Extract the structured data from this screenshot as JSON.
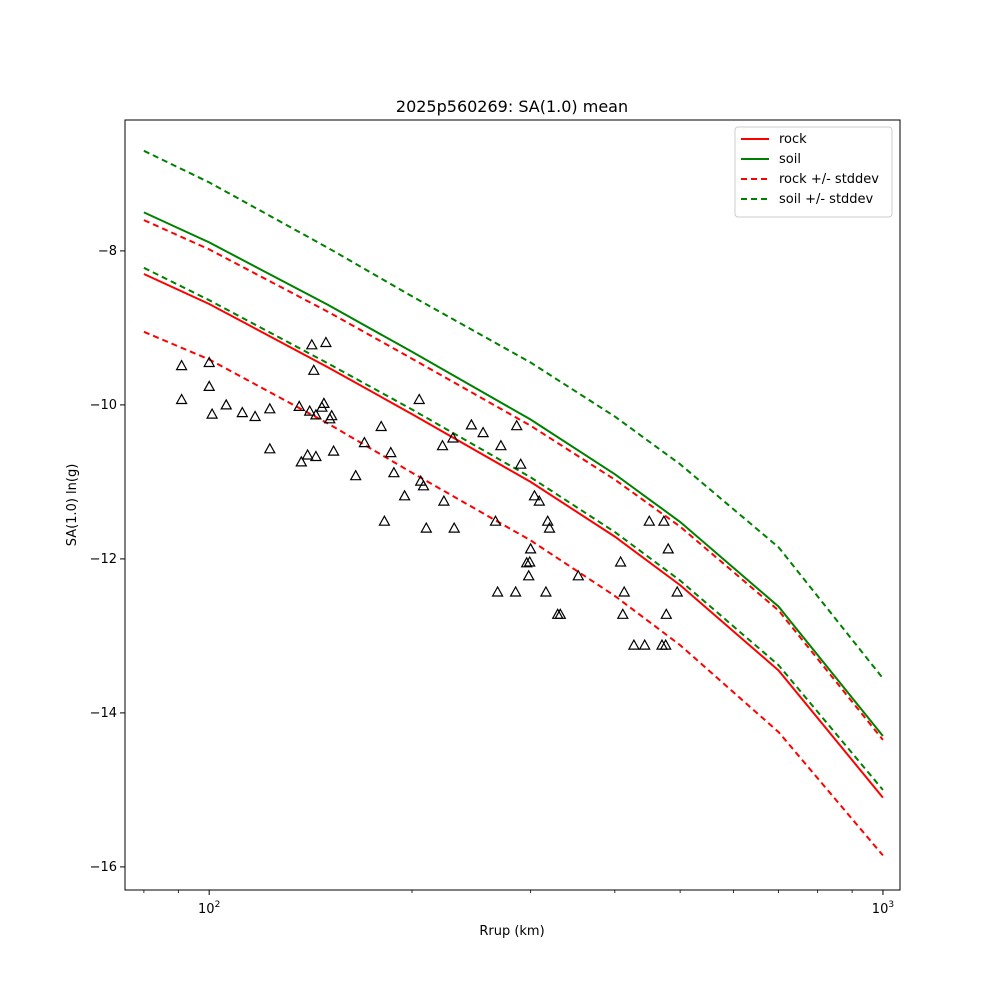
{
  "chart_data": {
    "type": "line",
    "title": "2025p560269: SA(1.0) mean",
    "xlabel": "Rrup (km)",
    "ylabel": "SA(1.0) ln(g)",
    "x_scale": "log",
    "xlim": [
      75,
      1060
    ],
    "ylim": [
      -16.3,
      -6.3
    ],
    "x_ticks": [
      {
        "value": 100,
        "label": "10",
        "sup": "2"
      },
      {
        "value": 1000,
        "label": "10",
        "sup": "3"
      }
    ],
    "y_ticks": [
      {
        "value": -8,
        "label": "−8"
      },
      {
        "value": -10,
        "label": "−10"
      },
      {
        "value": -12,
        "label": "−12"
      },
      {
        "value": -14,
        "label": "−14"
      },
      {
        "value": -16,
        "label": "−16"
      }
    ],
    "grid": false,
    "legend_position": "top-right",
    "colors": {
      "rock": "#ff0000",
      "soil": "#008000",
      "observed": "#000000"
    },
    "series": [
      {
        "name": "rock",
        "legend": true,
        "color": "#ff0000",
        "dashed": false,
        "x": [
          80,
          100,
          150,
          200,
          300,
          400,
          500,
          700,
          1000
        ],
        "y": [
          -8.3,
          -8.69,
          -9.51,
          -10.12,
          -11.0,
          -11.71,
          -12.34,
          -13.45,
          -15.1
        ]
      },
      {
        "name": "soil",
        "legend": true,
        "color": "#008000",
        "dashed": false,
        "x": [
          80,
          100,
          150,
          200,
          300,
          400,
          500,
          700,
          1000
        ],
        "y": [
          -7.5,
          -7.89,
          -8.7,
          -9.31,
          -10.19,
          -10.9,
          -11.52,
          -12.62,
          -14.3
        ]
      },
      {
        "name": "rock +/- stddev",
        "legend": true,
        "color": "#ff0000",
        "dashed": true,
        "x": [
          80,
          100,
          150,
          200,
          300,
          400,
          500,
          700,
          1000
        ],
        "y": [
          -7.6,
          -7.98,
          -8.79,
          -9.4,
          -10.27,
          -10.97,
          -11.58,
          -12.67,
          -14.35
        ]
      },
      {
        "name": "",
        "legend": false,
        "color": "#ff0000",
        "dashed": true,
        "x": [
          80,
          100,
          150,
          200,
          300,
          400,
          500,
          700,
          1000
        ],
        "y": [
          -9.05,
          -9.41,
          -10.24,
          -10.88,
          -11.76,
          -12.48,
          -13.12,
          -14.25,
          -15.85
        ]
      },
      {
        "name": "soil +/- stddev",
        "legend": true,
        "color": "#008000",
        "dashed": true,
        "x": [
          80,
          100,
          150,
          200,
          300,
          400,
          500,
          700,
          1000
        ],
        "y": [
          -6.7,
          -7.11,
          -7.96,
          -8.59,
          -9.45,
          -10.15,
          -10.77,
          -11.85,
          -13.55
        ]
      },
      {
        "name": "",
        "legend": false,
        "color": "#008000",
        "dashed": true,
        "x": [
          80,
          100,
          150,
          200,
          300,
          400,
          500,
          700,
          1000
        ],
        "y": [
          -8.22,
          -8.64,
          -9.46,
          -10.06,
          -10.94,
          -11.65,
          -12.28,
          -13.38,
          -15.0
        ]
      }
    ],
    "observations": {
      "marker": "triangle-open",
      "color": "#000000",
      "x": [
        91,
        91,
        100,
        100,
        101,
        106,
        112,
        117,
        123,
        123,
        136,
        137,
        140,
        141,
        142,
        143,
        144,
        144,
        147,
        148,
        149,
        151,
        152,
        153,
        165,
        170,
        180,
        182,
        186,
        188,
        195,
        205,
        206,
        208,
        210,
        222,
        223,
        230,
        231,
        245,
        255,
        266,
        268,
        271,
        285,
        286,
        290,
        296,
        298,
        299,
        300,
        304,
        309,
        316,
        318,
        320,
        329,
        332,
        353,
        408,
        411,
        413,
        427,
        443,
        450,
        470,
        473,
        476,
        477,
        480,
        495
      ],
      "y": [
        -9.49,
        -9.93,
        -9.45,
        -9.76,
        -10.12,
        -10.0,
        -10.1,
        -10.15,
        -10.57,
        -10.05,
        -10.02,
        -10.74,
        -10.65,
        -10.08,
        -9.22,
        -9.55,
        -10.67,
        -10.13,
        -10.03,
        -9.98,
        -9.19,
        -10.18,
        -10.14,
        -10.6,
        -10.92,
        -10.49,
        -10.28,
        -11.51,
        -10.62,
        -10.88,
        -11.18,
        -9.93,
        -10.99,
        -11.05,
        -11.6,
        -10.53,
        -11.25,
        -10.43,
        -11.6,
        -10.26,
        -10.36,
        -11.51,
        -12.43,
        -10.53,
        -12.43,
        -10.27,
        -10.77,
        -12.05,
        -12.22,
        -12.04,
        -11.87,
        -11.18,
        -11.25,
        -12.43,
        -11.51,
        -11.6,
        -12.72,
        -12.72,
        -12.22,
        -12.04,
        -12.72,
        -12.43,
        -13.12,
        -13.12,
        -11.51,
        -13.12,
        -11.51,
        -13.12,
        -12.72,
        -11.87,
        -12.43
      ]
    }
  }
}
